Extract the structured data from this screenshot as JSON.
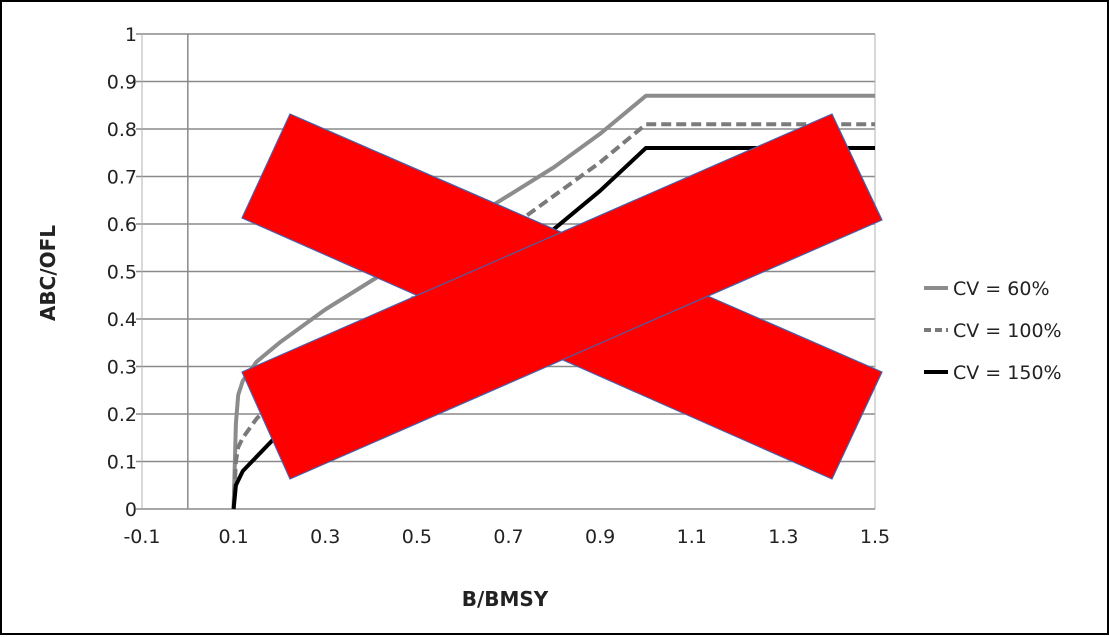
{
  "chart_data": {
    "type": "line",
    "title": "",
    "xlabel": "B/BMSY",
    "ylabel": "ABC/OFL",
    "xlim": [
      -0.1,
      1.5
    ],
    "ylim": [
      0,
      1
    ],
    "x_ticks": [
      "-0.1",
      "0.1",
      "0.3",
      "0.5",
      "0.7",
      "0.9",
      "1.1",
      "1.3",
      "1.5"
    ],
    "y_ticks": [
      "0",
      "0.1",
      "0.2",
      "0.3",
      "0.4",
      "0.5",
      "0.6",
      "0.7",
      "0.8",
      "0.9",
      "1"
    ],
    "grid": "horizontal",
    "legend_position": "right",
    "series": [
      {
        "name": "CV = 60%",
        "color": "#8c8c8c",
        "dash": "solid",
        "points": [
          [
            0.1,
            0.0
          ],
          [
            0.105,
            0.18
          ],
          [
            0.11,
            0.24
          ],
          [
            0.12,
            0.27
          ],
          [
            0.15,
            0.31
          ],
          [
            0.2,
            0.35
          ],
          [
            0.3,
            0.42
          ],
          [
            0.4,
            0.48
          ],
          [
            0.5,
            0.54
          ],
          [
            0.6,
            0.6
          ],
          [
            0.7,
            0.66
          ],
          [
            0.8,
            0.72
          ],
          [
            0.9,
            0.79
          ],
          [
            1.0,
            0.87
          ],
          [
            1.5,
            0.87
          ]
        ]
      },
      {
        "name": "CV = 100%",
        "color": "#7a7a7a",
        "dash": "dashed",
        "points": [
          [
            0.1,
            0.0
          ],
          [
            0.105,
            0.1
          ],
          [
            0.11,
            0.13
          ],
          [
            0.12,
            0.15
          ],
          [
            0.15,
            0.19
          ],
          [
            0.2,
            0.24
          ],
          [
            0.3,
            0.31
          ],
          [
            0.4,
            0.38
          ],
          [
            0.5,
            0.45
          ],
          [
            0.6,
            0.52
          ],
          [
            0.7,
            0.59
          ],
          [
            0.8,
            0.66
          ],
          [
            0.9,
            0.73
          ],
          [
            1.0,
            0.81
          ],
          [
            1.5,
            0.81
          ]
        ]
      },
      {
        "name": "CV = 150%",
        "color": "#000000",
        "dash": "solid",
        "points": [
          [
            0.1,
            0.0
          ],
          [
            0.105,
            0.05
          ],
          [
            0.12,
            0.08
          ],
          [
            0.15,
            0.11
          ],
          [
            0.2,
            0.16
          ],
          [
            0.3,
            0.23
          ],
          [
            0.4,
            0.31
          ],
          [
            0.5,
            0.38
          ],
          [
            0.6,
            0.46
          ],
          [
            0.7,
            0.53
          ],
          [
            0.8,
            0.59
          ],
          [
            0.9,
            0.67
          ],
          [
            1.0,
            0.76
          ],
          [
            1.5,
            0.76
          ]
        ]
      }
    ],
    "overlay": {
      "shape": "cross",
      "color": "#ff0000",
      "stroke": "#4a5fa8"
    }
  }
}
